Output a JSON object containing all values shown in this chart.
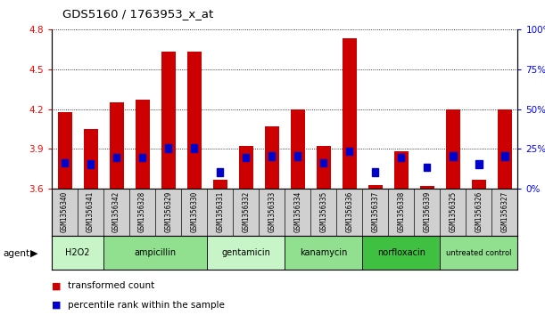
{
  "title": "GDS5160 / 1763953_x_at",
  "samples": [
    "GSM1356340",
    "GSM1356341",
    "GSM1356342",
    "GSM1356328",
    "GSM1356329",
    "GSM1356330",
    "GSM1356331",
    "GSM1356332",
    "GSM1356333",
    "GSM1356334",
    "GSM1356335",
    "GSM1356336",
    "GSM1356337",
    "GSM1356338",
    "GSM1356339",
    "GSM1356325",
    "GSM1356326",
    "GSM1356327"
  ],
  "red_values": [
    4.18,
    4.05,
    4.25,
    4.27,
    4.63,
    4.63,
    3.67,
    3.92,
    4.07,
    4.2,
    3.92,
    4.73,
    3.63,
    3.88,
    3.62,
    4.2,
    3.67,
    4.2
  ],
  "blue_pct": [
    15,
    14,
    18,
    18,
    24,
    24,
    9,
    18,
    19,
    19,
    15,
    22,
    9,
    18,
    12,
    19,
    14,
    19
  ],
  "agents": [
    {
      "label": "H2O2",
      "start": 0,
      "end": 2,
      "color": "#c8f5c8"
    },
    {
      "label": "ampicillin",
      "start": 2,
      "end": 6,
      "color": "#90e090"
    },
    {
      "label": "gentamicin",
      "start": 6,
      "end": 9,
      "color": "#c8f5c8"
    },
    {
      "label": "kanamycin",
      "start": 9,
      "end": 12,
      "color": "#90e090"
    },
    {
      "label": "norfloxacin",
      "start": 12,
      "end": 15,
      "color": "#40c040"
    },
    {
      "label": "untreated control",
      "start": 15,
      "end": 18,
      "color": "#90e090"
    }
  ],
  "ylim_left": [
    3.6,
    4.8
  ],
  "ylim_right": [
    0,
    100
  ],
  "yticks_left": [
    3.6,
    3.9,
    4.2,
    4.5,
    4.8
  ],
  "yticks_right": [
    0,
    25,
    50,
    75,
    100
  ],
  "ytick_labels_right": [
    "0%",
    "25%",
    "50%",
    "75%",
    "100%"
  ],
  "bar_color": "#cc0000",
  "blue_color": "#0000cc",
  "agent_label": "agent",
  "legend_red": "transformed count",
  "legend_blue": "percentile rank within the sample"
}
